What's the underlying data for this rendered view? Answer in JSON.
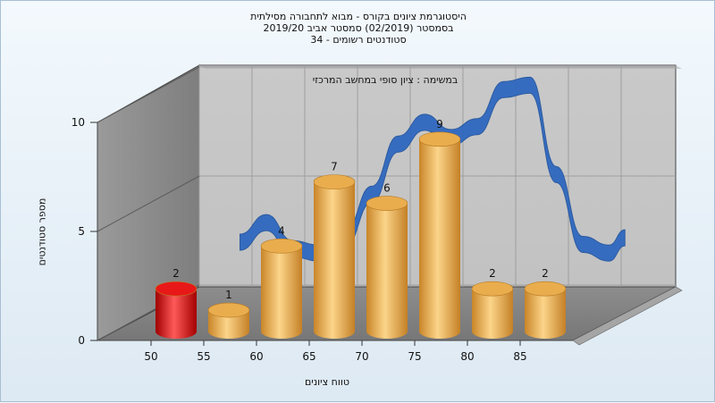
{
  "chart_data": {
    "type": "bar",
    "title_lines": [
      "היסטוגרמת ציונים בקורס - מבוא לתחבורה מסילתית",
      "בסמסטר  (02/2019)  סמסטר אביב 2019/20",
      "סטודנטים רשומים - 34"
    ],
    "subtitle": "במשימה : ציון סופי במחשב המרכזי",
    "xlabel": "טווח ציונים",
    "ylabel": "מספר סטודנטים",
    "categories": [
      "50",
      "55",
      "60",
      "65",
      "70",
      "75",
      "80",
      "85"
    ],
    "values": [
      2,
      1,
      4,
      7,
      6,
      9,
      2,
      2
    ],
    "bar_labels": [
      "2",
      "1",
      "4",
      "7",
      "6",
      "9",
      "2",
      "2"
    ],
    "bar_colors": [
      "#e01010",
      "#e8a640",
      "#e8a640",
      "#e8a640",
      "#e8a640",
      "#e8a640",
      "#e8a640",
      "#e8a640"
    ],
    "y_ticks": [
      "0",
      "5",
      "10"
    ],
    "ylim": [
      0,
      10
    ],
    "curve_color": "#2f68bf",
    "curve_points": [
      {
        "x": 52.5,
        "y": 3.4
      },
      {
        "x": 55,
        "y": 4.3
      },
      {
        "x": 57.5,
        "y": 3.1
      },
      {
        "x": 60,
        "y": 2.9
      },
      {
        "x": 62.5,
        "y": 3.6
      },
      {
        "x": 65,
        "y": 5.6
      },
      {
        "x": 67.5,
        "y": 7.9
      },
      {
        "x": 70,
        "y": 8.9
      },
      {
        "x": 72.5,
        "y": 8.2
      },
      {
        "x": 75,
        "y": 8.7
      },
      {
        "x": 77.5,
        "y": 10.4
      },
      {
        "x": 80,
        "y": 10.6
      },
      {
        "x": 82.5,
        "y": 6.5
      },
      {
        "x": 85,
        "y": 3.3
      },
      {
        "x": 87.5,
        "y": 2.9
      },
      {
        "x": 89,
        "y": 3.6
      }
    ],
    "grid": true
  }
}
